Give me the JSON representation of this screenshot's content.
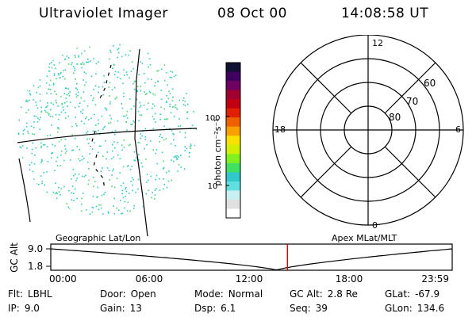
{
  "header": {
    "instrument": "Ultraviolet Imager",
    "date": "08 Oct 00",
    "time": "14:08:58 UT"
  },
  "colorbar": {
    "label": "photon cm⁻²s⁻¹",
    "ticks": [
      "100",
      "10"
    ],
    "colors": [
      "#ffffff",
      "#e0e0e0",
      "#c8f0f0",
      "#60e0e0",
      "#30c8c8",
      "#40e060",
      "#80f020",
      "#d0f000",
      "#f8e000",
      "#f8a000",
      "#f06000",
      "#e02000",
      "#c00010",
      "#a00030",
      "#700060",
      "#400060",
      "#101030"
    ]
  },
  "polar_plot": {
    "hour_labels": {
      "top": "12",
      "left": "18",
      "right": "6",
      "bottom": "0"
    },
    "lat_labels": [
      "60",
      "70",
      "80"
    ]
  },
  "image_panel": {
    "emission_color": "#33c9b8",
    "emission_color_secondary": "#53d36a"
  },
  "timeline": {
    "left_title": "Geographic Lat/Lon",
    "right_title": "Apex MLat/MLT",
    "axis_label": "GC Alt",
    "y_ticks": [
      "9.0",
      "1.8"
    ],
    "x_ticks": [
      "00:00",
      "06:00",
      "12:00",
      "18:00",
      "23:59"
    ],
    "current_time_hours": 14.15,
    "marker_color": "#dd0000"
  },
  "info": [
    {
      "label": "Flt:",
      "value": "LBHL"
    },
    {
      "label": "Door:",
      "value": "Open"
    },
    {
      "label": "Mode:",
      "value": "Normal"
    },
    {
      "label": "GC Alt:",
      "value": "2.8 Re"
    },
    {
      "label": "GLat:",
      "value": "-67.9"
    },
    {
      "label": "IP:",
      "value": "9.0"
    },
    {
      "label": "Gain:",
      "value": "13"
    },
    {
      "label": "Dsp:",
      "value": "6.1"
    },
    {
      "label": "Seq:",
      "value": "39"
    },
    {
      "label": "GLon:",
      "value": "134.6"
    }
  ]
}
